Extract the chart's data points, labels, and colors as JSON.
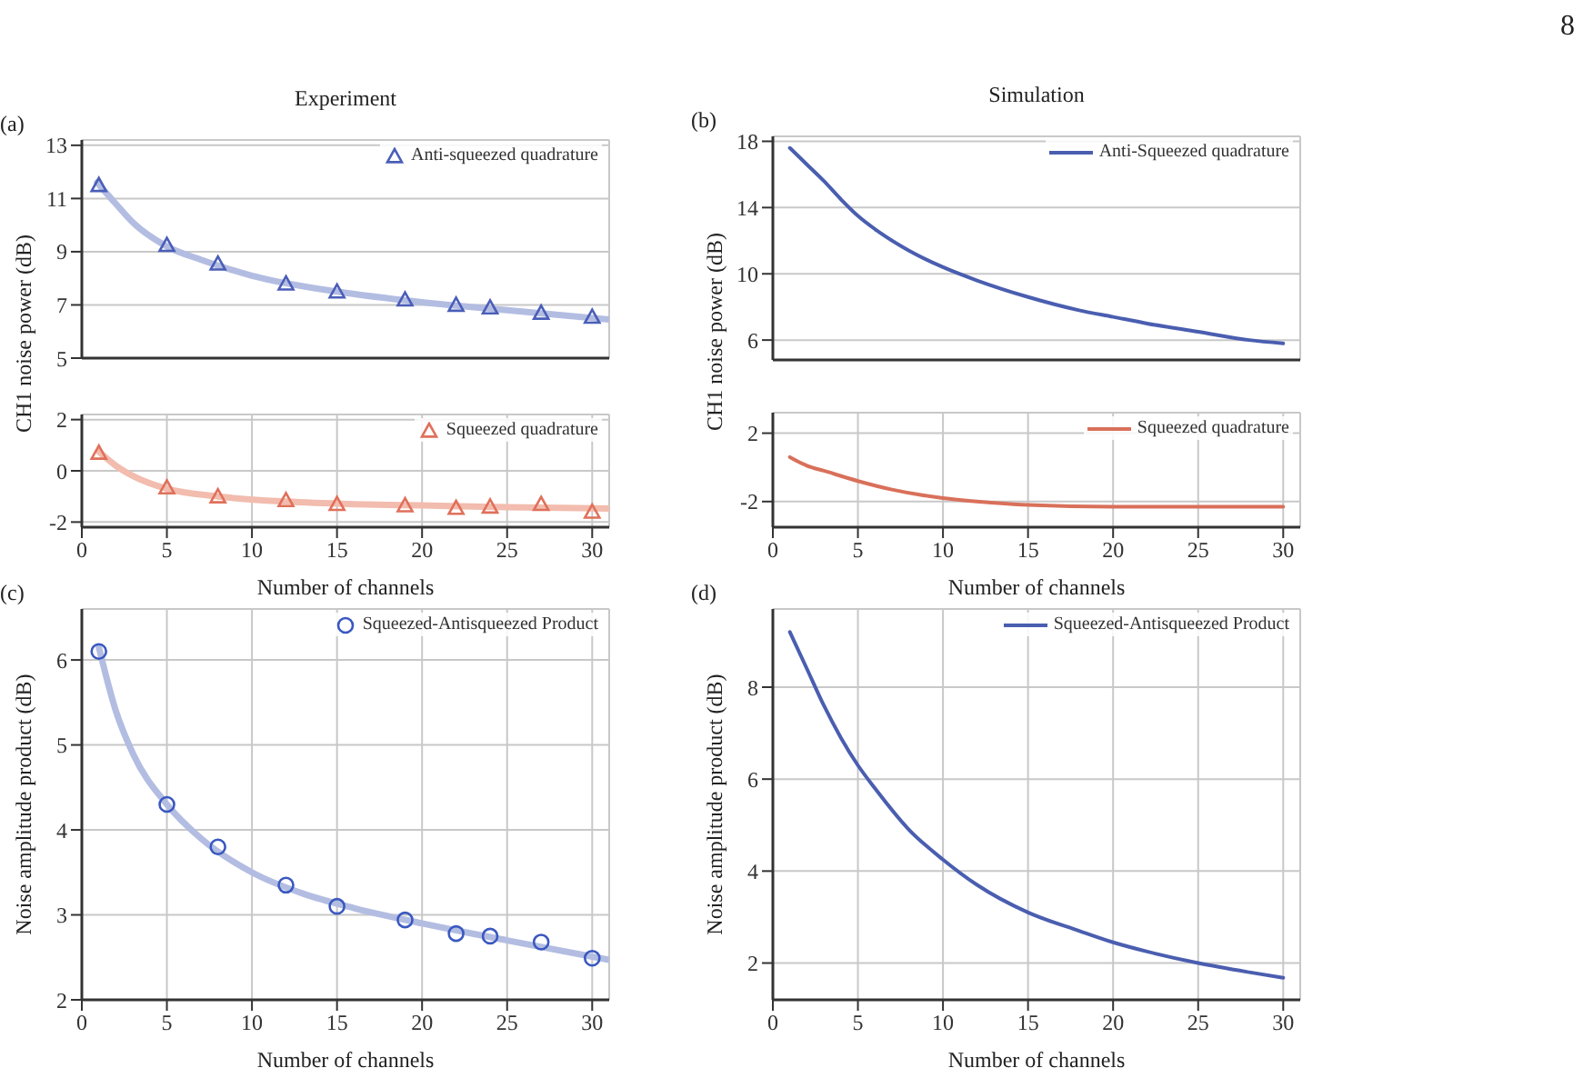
{
  "chart_data": [
    {
      "type": "scatter",
      "title": "Experiment",
      "ylabel": "CH1 noise power (dB)",
      "annotations": [
        "(a)",
        "8"
      ],
      "xlim": [
        0,
        31
      ],
      "xticks": [
        0,
        5,
        10,
        15,
        20,
        25,
        30
      ],
      "ylim": [
        5,
        13.2
      ],
      "yticks": [
        5,
        7,
        9,
        11,
        13
      ],
      "grid": true,
      "legend": "top right",
      "tick_labels": "y",
      "series": [
        {
          "type": "line",
          "color": "#b3bde2",
          "marker": "none",
          "line_style": "solid",
          "x": [
            0.9,
            2,
            3,
            5,
            7,
            10,
            15,
            20,
            25,
            31
          ],
          "values": [
            11.6,
            10.8,
            10.1,
            9.2,
            8.7,
            8.1,
            7.5,
            7.1,
            6.8,
            6.45
          ]
        },
        {
          "name": "Anti-squeezed quadrature",
          "color": "#4a5eb8",
          "marker": "triangle",
          "x": [
            1,
            5,
            8,
            12,
            15,
            19,
            22,
            24,
            27,
            30
          ],
          "values": [
            11.5,
            9.25,
            8.55,
            7.8,
            7.5,
            7.2,
            7.0,
            6.9,
            6.7,
            6.55
          ]
        }
      ]
    },
    {
      "type": "scatter",
      "xlabel": "Number of channels",
      "xlim": [
        0,
        31
      ],
      "xticks": [
        0,
        5,
        10,
        15,
        20,
        25,
        30
      ],
      "ylim": [
        -2.2,
        2.2
      ],
      "yticks": [
        -2,
        0,
        2
      ],
      "grid": true,
      "legend": "top right",
      "series": [
        {
          "type": "line",
          "color": "#f2bcae",
          "marker": "none",
          "line_style": "solid",
          "x": [
            1,
            2,
            3,
            5,
            8,
            12,
            16,
            20,
            25,
            31
          ],
          "values": [
            0.75,
            0.2,
            -0.2,
            -0.7,
            -1.0,
            -1.2,
            -1.3,
            -1.35,
            -1.42,
            -1.47
          ]
        },
        {
          "name": "Squeezed quadrature",
          "color": "#e0705a",
          "marker": "triangle",
          "x": [
            1,
            5,
            8,
            12,
            15,
            19,
            22,
            24,
            27,
            30
          ],
          "values": [
            0.7,
            -0.65,
            -1.0,
            -1.15,
            -1.3,
            -1.35,
            -1.45,
            -1.4,
            -1.3,
            -1.6
          ]
        }
      ]
    },
    {
      "type": "line",
      "title": "Simulation",
      "ylabel": "CH1 noise power (dB)",
      "annotations": [
        "(b)"
      ],
      "xlim": [
        0,
        31
      ],
      "xticks": [
        0,
        5,
        10,
        15,
        20,
        25,
        30
      ],
      "ylim": [
        4.8,
        18.3
      ],
      "yticks": [
        6,
        10,
        14,
        18
      ],
      "grid": true,
      "legend": "top right",
      "tick_labels": "y",
      "series": [
        {
          "name": "Anti-Squeezed quadrature",
          "color": "#4a5eb0",
          "marker": "none",
          "line_style": "solid",
          "x": [
            1,
            2,
            3,
            4,
            5,
            6,
            8,
            10,
            12,
            15,
            18,
            20,
            22,
            25,
            28,
            30
          ],
          "values": [
            17.6,
            16.6,
            15.6,
            14.5,
            13.5,
            12.7,
            11.4,
            10.4,
            9.6,
            8.6,
            7.8,
            7.4,
            7.0,
            6.5,
            6.0,
            5.8
          ]
        }
      ]
    },
    {
      "type": "line",
      "xlabel": "Number of channels",
      "xlim": [
        0,
        31
      ],
      "xticks": [
        0,
        5,
        10,
        15,
        20,
        25,
        30
      ],
      "ylim": [
        -3.5,
        3.2
      ],
      "yticks": [
        -2,
        2
      ],
      "grid": true,
      "legend": "top right",
      "series": [
        {
          "name": "Squeezed quadrature",
          "color": "#d9705a",
          "marker": "none",
          "line_style": "solid",
          "x": [
            1,
            2,
            3,
            5,
            7,
            10,
            12,
            15,
            20,
            25,
            30
          ],
          "values": [
            0.6,
            0.1,
            -0.2,
            -0.8,
            -1.3,
            -1.8,
            -2.0,
            -2.2,
            -2.3,
            -2.3,
            -2.3
          ]
        }
      ]
    },
    {
      "type": "scatter",
      "xlabel": "Number of channels",
      "ylabel": "Noise amplitude product (dB)",
      "annotations": [
        "(c)"
      ],
      "xlim": [
        0,
        31
      ],
      "xticks": [
        0,
        5,
        10,
        15,
        20,
        25,
        30
      ],
      "ylim": [
        2,
        6.6
      ],
      "yticks": [
        2,
        3,
        4,
        5,
        6
      ],
      "grid": true,
      "legend": "top right",
      "series": [
        {
          "type": "line",
          "color": "#b3bde2",
          "marker": "none",
          "line_style": "solid",
          "x": [
            1,
            2,
            3,
            5,
            7,
            10,
            13,
            16,
            20,
            25,
            31
          ],
          "values": [
            6.15,
            5.4,
            4.9,
            4.3,
            3.9,
            3.5,
            3.25,
            3.08,
            2.9,
            2.7,
            2.47
          ]
        },
        {
          "name": "Squeezed-Antisqueezed Product",
          "color": "#3a58c0",
          "marker": "circle",
          "x": [
            1,
            5,
            8,
            12,
            15,
            19,
            22,
            24,
            27,
            30
          ],
          "values": [
            6.1,
            4.3,
            3.8,
            3.35,
            3.1,
            2.94,
            2.78,
            2.75,
            2.68,
            2.49
          ]
        }
      ]
    },
    {
      "type": "line",
      "xlabel": "Number of channels",
      "ylabel": "Noise amplitude product (dB)",
      "annotations": [
        "(d)"
      ],
      "xlim": [
        0,
        31
      ],
      "xticks": [
        0,
        5,
        10,
        15,
        20,
        25,
        30
      ],
      "ylim": [
        1.2,
        9.7
      ],
      "yticks": [
        2,
        4,
        6,
        8
      ],
      "grid": true,
      "legend": "top right",
      "series": [
        {
          "name": "Squeezed-Antisqueezed Product",
          "color": "#4a5eb0",
          "marker": "none",
          "line_style": "solid",
          "x": [
            1,
            2,
            3,
            4,
            5,
            6,
            8,
            10,
            12,
            15,
            18,
            20,
            22,
            25,
            28,
            30
          ],
          "values": [
            9.2,
            8.4,
            7.6,
            6.9,
            6.3,
            5.8,
            4.9,
            4.25,
            3.7,
            3.1,
            2.7,
            2.45,
            2.25,
            2.0,
            1.8,
            1.68
          ]
        }
      ]
    }
  ]
}
